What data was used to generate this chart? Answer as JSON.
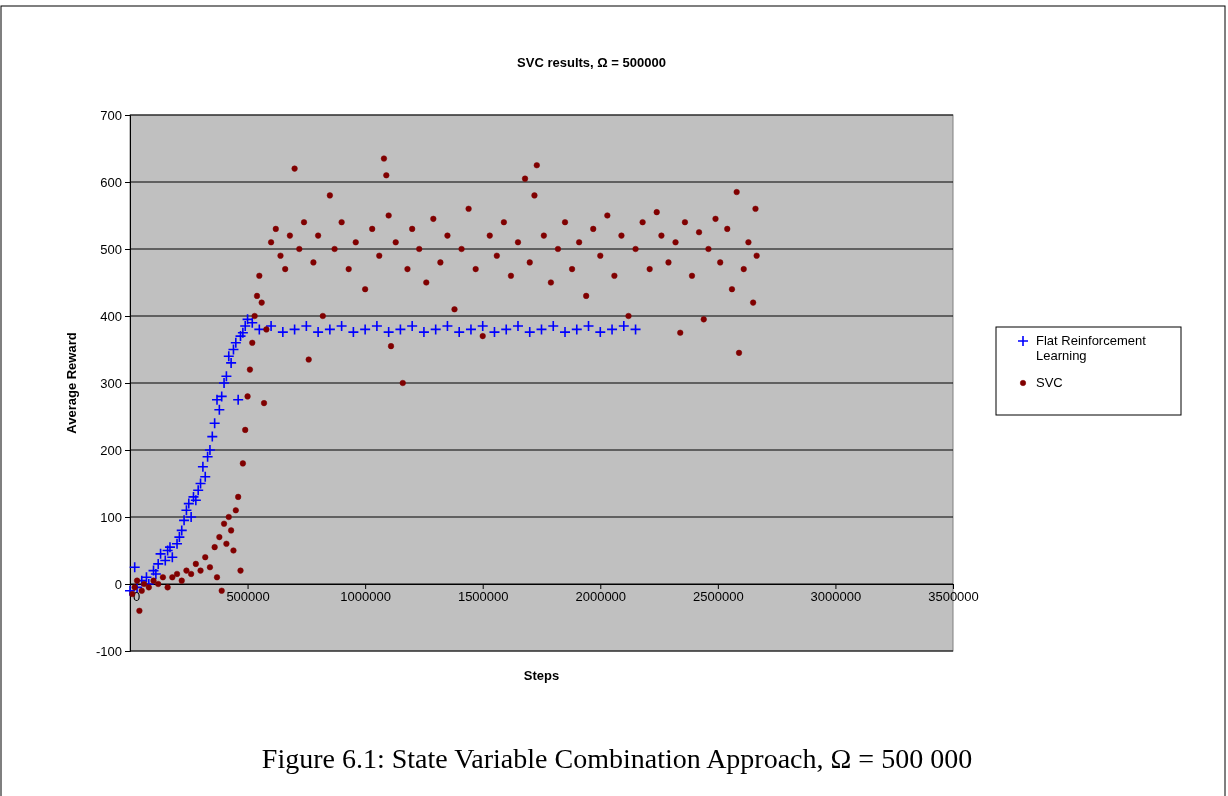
{
  "chart_data": {
    "type": "scatter",
    "title": "SVC results, Ω = 500000",
    "xlabel": "Steps",
    "ylabel": "Average Reward",
    "annotations": [
      "Figure 6.1: State Variable Combination Approach, Ω = 500 000"
    ],
    "xlim": [
      0,
      3500000
    ],
    "xticks": [
      0,
      500000,
      1000000,
      1500000,
      2000000,
      2500000,
      3000000,
      3500000
    ],
    "ylim": [
      -100,
      700
    ],
    "yticks": [
      -100,
      0,
      100,
      200,
      300,
      400,
      500,
      600,
      700
    ],
    "grid": "y",
    "legend": "right",
    "series": [
      {
        "name": "Flat Reinforcement Learning",
        "color": "#0000ff",
        "marker": "cross",
        "x": [
          0,
          20000,
          30000,
          50000,
          70000,
          80000,
          100000,
          110000,
          120000,
          130000,
          150000,
          160000,
          170000,
          180000,
          200000,
          210000,
          220000,
          230000,
          240000,
          250000,
          260000,
          270000,
          280000,
          290000,
          300000,
          310000,
          320000,
          330000,
          340000,
          350000,
          360000,
          370000,
          380000,
          390000,
          400000,
          410000,
          420000,
          430000,
          440000,
          450000,
          460000,
          470000,
          480000,
          490000,
          500000,
          520000,
          550000,
          600000,
          650000,
          700000,
          750000,
          800000,
          850000,
          900000,
          950000,
          1000000,
          1050000,
          1100000,
          1150000,
          1200000,
          1250000,
          1300000,
          1350000,
          1400000,
          1450000,
          1500000,
          1550000,
          1600000,
          1650000,
          1700000,
          1750000,
          1800000,
          1850000,
          1900000,
          1950000,
          2000000,
          2050000,
          2100000,
          2150000
        ],
        "values": [
          -10,
          25,
          -5,
          5,
          10,
          0,
          20,
          15,
          30,
          45,
          35,
          50,
          55,
          40,
          60,
          70,
          80,
          95,
          110,
          120,
          100,
          130,
          125,
          140,
          150,
          175,
          160,
          190,
          200,
          220,
          240,
          275,
          260,
          280,
          300,
          310,
          340,
          330,
          350,
          360,
          275,
          370,
          375,
          385,
          395,
          390,
          380,
          385,
          376,
          380,
          385,
          376,
          380,
          385,
          376,
          380,
          385,
          376,
          380,
          385,
          376,
          380,
          385,
          376,
          380,
          385,
          376,
          380,
          385,
          376,
          380,
          385,
          376,
          380,
          385,
          376,
          380,
          385,
          380
        ]
      },
      {
        "name": "SVC",
        "color": "#800000",
        "marker": "circle",
        "x": [
          10000,
          20000,
          30000,
          40000,
          50000,
          60000,
          80000,
          100000,
          120000,
          140000,
          160000,
          180000,
          200000,
          220000,
          240000,
          260000,
          280000,
          300000,
          320000,
          340000,
          360000,
          370000,
          380000,
          390000,
          400000,
          410000,
          420000,
          430000,
          440000,
          450000,
          460000,
          470000,
          480000,
          490000,
          500000,
          510000,
          520000,
          530000,
          540000,
          550000,
          560000,
          570000,
          580000,
          600000,
          620000,
          640000,
          660000,
          680000,
          700000,
          720000,
          740000,
          760000,
          780000,
          800000,
          820000,
          850000,
          870000,
          900000,
          930000,
          960000,
          1000000,
          1030000,
          1060000,
          1080000,
          1090000,
          1100000,
          1110000,
          1130000,
          1160000,
          1180000,
          1200000,
          1230000,
          1260000,
          1290000,
          1320000,
          1350000,
          1380000,
          1410000,
          1440000,
          1470000,
          1500000,
          1530000,
          1560000,
          1590000,
          1620000,
          1650000,
          1680000,
          1700000,
          1720000,
          1730000,
          1760000,
          1790000,
          1820000,
          1850000,
          1880000,
          1910000,
          1940000,
          1970000,
          2000000,
          2030000,
          2060000,
          2090000,
          2120000,
          2150000,
          2180000,
          2210000,
          2240000,
          2260000,
          2290000,
          2320000,
          2340000,
          2360000,
          2390000,
          2420000,
          2440000,
          2460000,
          2490000,
          2510000,
          2540000,
          2560000,
          2580000,
          2590000,
          2610000,
          2630000,
          2650000,
          2660000,
          2665000
        ],
        "values": [
          -15,
          -5,
          5,
          -40,
          -10,
          0,
          -5,
          5,
          0,
          10,
          -5,
          10,
          15,
          5,
          20,
          15,
          30,
          20,
          40,
          25,
          55,
          10,
          70,
          -10,
          90,
          60,
          100,
          80,
          50,
          110,
          130,
          20,
          180,
          230,
          280,
          320,
          360,
          400,
          430,
          460,
          420,
          270,
          380,
          510,
          530,
          490,
          470,
          520,
          620,
          500,
          540,
          335,
          480,
          520,
          400,
          580,
          500,
          540,
          470,
          510,
          440,
          530,
          490,
          635,
          610,
          550,
          355,
          510,
          300,
          470,
          530,
          500,
          450,
          545,
          480,
          520,
          410,
          500,
          560,
          470,
          370,
          520,
          490,
          540,
          460,
          510,
          605,
          480,
          580,
          625,
          520,
          450,
          500,
          540,
          470,
          510,
          430,
          530,
          490,
          550,
          460,
          520,
          400,
          500,
          540,
          470,
          555,
          520,
          480,
          510,
          375,
          540,
          460,
          525,
          395,
          500,
          545,
          480,
          530,
          440,
          585,
          345,
          470,
          510,
          420,
          560,
          490
        ]
      }
    ]
  }
}
